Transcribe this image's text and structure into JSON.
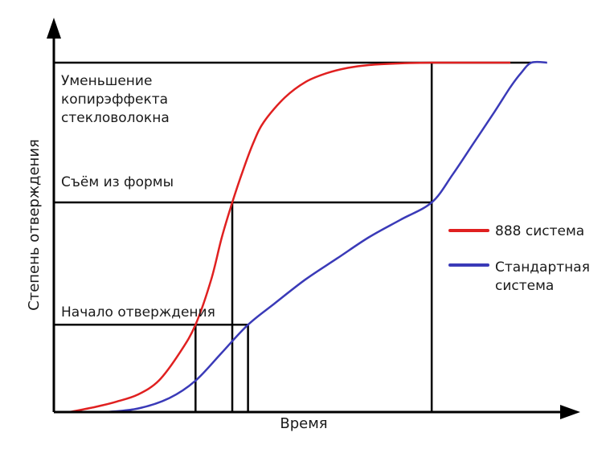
{
  "chart_data": {
    "type": "line",
    "title": "",
    "xlabel": "Время",
    "ylabel": "Степень отверждения",
    "xlim": [
      0,
      100
    ],
    "ylim": [
      0,
      100
    ],
    "grid": false,
    "legend_position": "right",
    "stage_labels": {
      "cure_start": "Начало отверждения",
      "demold": "Съём из формы",
      "reduced_print_through_lines": [
        "Уменьшение",
        "копирэффекта",
        "стекловолокна"
      ]
    },
    "levels": {
      "cure_start": 25,
      "demold": 60,
      "full": 100
    },
    "series": [
      {
        "name": "888 система",
        "color": "#e02020",
        "x": [
          3,
          8,
          12,
          16,
          20,
          24,
          27,
          30,
          32,
          34,
          36,
          38,
          40,
          44,
          48,
          52,
          56,
          60,
          66,
          72,
          78,
          82,
          87
        ],
        "y": [
          0,
          1.5,
          3,
          5,
          9,
          17,
          25,
          38,
          50,
          60,
          69,
          77,
          83,
          90,
          94.5,
          97,
          98.5,
          99.3,
          99.8,
          100,
          100,
          100,
          100
        ],
        "crossings": {
          "cure_start": 27,
          "demold": 34,
          "full": 72
        }
      },
      {
        "name": "Стандартная система",
        "color": "#3a3ab8",
        "x": [
          10,
          16,
          22,
          27,
          32,
          37,
          42,
          48,
          54,
          60,
          66,
          72,
          76,
          80,
          84,
          87,
          89,
          91,
          94
        ],
        "y": [
          0,
          1,
          4,
          9,
          17,
          25,
          31,
          38,
          44,
          50,
          55,
          60,
          68,
          77,
          86,
          93,
          97,
          100,
          100
        ],
        "crossings": {
          "cure_start": 37,
          "demold": 72,
          "full": 91
        }
      }
    ]
  }
}
